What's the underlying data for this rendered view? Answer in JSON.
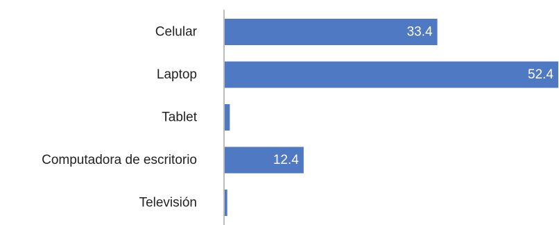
{
  "chart_data": {
    "type": "bar",
    "orientation": "horizontal",
    "categories": [
      "Celular",
      "Laptop",
      "Tablet",
      "Computadora de escritorio",
      "Televisión"
    ],
    "values": [
      33.4,
      52.4,
      0.8,
      12.4,
      0.4
    ],
    "data_labels": [
      "33.4",
      "52.4",
      "",
      "12.4",
      ""
    ],
    "title": "",
    "xlabel": "",
    "ylabel": "",
    "xlim": [
      0,
      52.4
    ],
    "grid": false,
    "legend": "none",
    "colors": {
      "bar": "#4f79c2",
      "axis": "#a6a6a6",
      "label_text": "#222222",
      "value_text": "#ffffff"
    }
  }
}
